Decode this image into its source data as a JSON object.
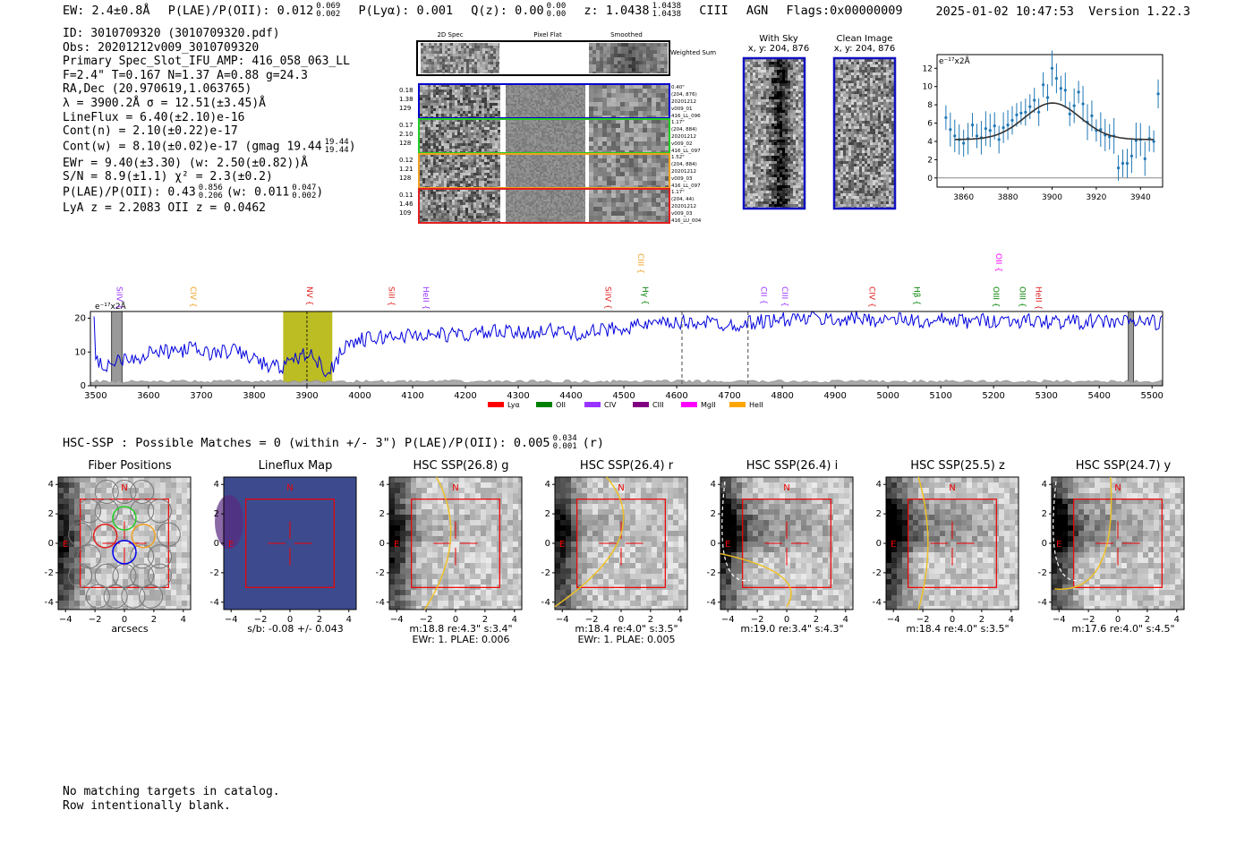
{
  "header": {
    "ew": "EW: 2.4±0.8Å",
    "plae_label": "P(LAE)/P(OII): 0.012",
    "plae_hi": "0.069",
    "plae_lo": "0.002",
    "plya": "P(Lyα): 0.001",
    "qz_label": "Q(z): 0.00",
    "qz_hi": "0.00",
    "qz_lo": "0.00",
    "z_label": "z: 1.0438",
    "z_hi": "1.0438",
    "z_lo": "1.0438",
    "line_id": "CIII",
    "type": "AGN",
    "flags": "Flags:0x00000009",
    "datetime": "2025-01-02 10:47:53",
    "version": "Version 1.22.3"
  },
  "info": {
    "id": "ID: 3010709320 (3010709320.pdf)",
    "obs": "Obs: 20201212v009_3010709320",
    "primary": "Primary Spec_Slot_IFU_AMP: 416_058_063_LL",
    "fit": "F=2.4\"  T=0.167  N=1.37  A=0.88  g=24.3",
    "radec": "RA,Dec (20.970619,1.063765)",
    "lambda": "λ = 3900.2Å   σ = 12.51(±3.45)Å",
    "lineflux": "LineFlux = 6.40(±2.10)e-16",
    "contn": "Cont(n) = 2.10(±0.22)e-17",
    "contw": "Cont(w) = 8.10(±0.02)e-17 (gmag 19.44",
    "contw_hi": "19.44",
    "contw_lo": "19.44",
    "ewr": "EWr = 9.40(±3.30) (w: 2.50(±0.82))Å",
    "sn": "S/N = 8.9(±1.1)  χ² = 2.3(±0.2)",
    "plae": "P(LAE)/P(OII): 0.43",
    "plae_hi": "0.856",
    "plae_lo": "0.206",
    "plae_w": "(w: 0.011",
    "plae_w_hi": "0.047",
    "plae_w_lo": "0.002",
    "lyaz": "LyA z = 2.2083   OII z = 0.0462"
  },
  "spec2d": {
    "headers": [
      "2D Spec",
      "Pixel Flat",
      "Smoothed"
    ],
    "weighted_label": "Weighted Sum",
    "rows": [
      {
        "left": [
          "0.18",
          "1.38",
          "129"
        ],
        "right": [
          "0.40\"",
          "(204, 876)",
          "20201212",
          "v009_01",
          "416_LL_096"
        ],
        "color": "#0000cc"
      },
      {
        "left": [
          "0.17",
          "2.10",
          "128"
        ],
        "right": [
          "1.17\"",
          "(204, 884)",
          "20201212",
          "v009_02",
          "416_LL_097"
        ],
        "color": "#22cc22"
      },
      {
        "left": [
          "0.12",
          "1.21",
          "128"
        ],
        "right": [
          "1.52\"",
          "(204, 884)",
          "20201212",
          "v009_03",
          "416_LL_097"
        ],
        "color": "#f0a020"
      },
      {
        "left": [
          "0.11",
          "1.46",
          "109"
        ],
        "right": [
          "1.17\"",
          "(204, 44)",
          "20201212",
          "v009_03",
          "416_LU_004"
        ],
        "color": "#e02020"
      }
    ]
  },
  "cutouts_top": {
    "with_sky": "With Sky",
    "with_sky_xy": "x, y: 204, 876",
    "clean": "Clean Image",
    "clean_xy": "x, y: 204, 876"
  },
  "line_fit": {
    "unit": "e⁻¹⁷x2Å",
    "chart_data": {
      "type": "scatter",
      "xlim": [
        3848,
        3950
      ],
      "ylim": [
        -1,
        13.5
      ],
      "xticks": [
        3860,
        3880,
        3900,
        3920,
        3940
      ],
      "yticks": [
        0,
        2,
        4,
        6,
        8,
        10,
        12
      ],
      "points": [
        [
          3852,
          6.6
        ],
        [
          3854,
          5.3
        ],
        [
          3856,
          4.6
        ],
        [
          3858,
          4.2
        ],
        [
          3860,
          3.8
        ],
        [
          3862,
          4.3
        ],
        [
          3864,
          5.8
        ],
        [
          3866,
          4.6
        ],
        [
          3868,
          4.4
        ],
        [
          3870,
          5.4
        ],
        [
          3872,
          5.2
        ],
        [
          3874,
          5.7
        ],
        [
          3876,
          4.2
        ],
        [
          3878,
          5.5
        ],
        [
          3880,
          5.8
        ],
        [
          3882,
          6.3
        ],
        [
          3884,
          6.9
        ],
        [
          3886,
          7.1
        ],
        [
          3888,
          7.2
        ],
        [
          3890,
          7.8
        ],
        [
          3892,
          8.5
        ],
        [
          3894,
          7.2
        ],
        [
          3896,
          10.2
        ],
        [
          3898,
          8.8
        ],
        [
          3900,
          12.0
        ],
        [
          3902,
          10.9
        ],
        [
          3904,
          9.8
        ],
        [
          3906,
          9.6
        ],
        [
          3908,
          7.0
        ],
        [
          3910,
          7.9
        ],
        [
          3912,
          9.4
        ],
        [
          3914,
          8.1
        ],
        [
          3916,
          6.1
        ],
        [
          3918,
          6.8
        ],
        [
          3920,
          5.2
        ],
        [
          3922,
          5.3
        ],
        [
          3924,
          4.7
        ],
        [
          3926,
          4.5
        ],
        [
          3928,
          4.6
        ],
        [
          3930,
          1.1
        ],
        [
          3932,
          1.6
        ],
        [
          3934,
          1.6
        ],
        [
          3936,
          2.4
        ],
        [
          3938,
          4.1
        ],
        [
          3940,
          4.2
        ],
        [
          3942,
          2.1
        ],
        [
          3944,
          4.3
        ],
        [
          3946,
          4.0
        ],
        [
          3948,
          9.2
        ]
      ],
      "fit": {
        "center": 3900.2,
        "sigma": 12.51,
        "amp": 4.0,
        "base": 4.2
      }
    }
  },
  "spectrum": {
    "unit": "e⁻¹⁷x2Å",
    "chart_data": {
      "type": "line",
      "xlim": [
        3490,
        5520
      ],
      "ylim": [
        0,
        22
      ],
      "xticks": [
        3500,
        3600,
        3700,
        3800,
        3900,
        4000,
        4100,
        4200,
        4300,
        4400,
        4500,
        4600,
        4700,
        4800,
        4900,
        5000,
        5100,
        5200,
        5300,
        5400,
        5500
      ],
      "yticks": [
        0,
        10,
        20
      ],
      "highlight": [
        3855,
        3948
      ],
      "line_marker": 3900,
      "dashed": [
        4610,
        4735
      ],
      "masked": [
        [
          3530,
          3550
        ],
        [
          5455,
          5465
        ]
      ],
      "anchors": [
        [
          3500,
          7
        ],
        [
          3520,
          6
        ],
        [
          3540,
          7.5
        ],
        [
          3560,
          9
        ],
        [
          3580,
          8
        ],
        [
          3600,
          10
        ],
        [
          3640,
          10
        ],
        [
          3680,
          11
        ],
        [
          3720,
          9.5
        ],
        [
          3760,
          10.5
        ],
        [
          3800,
          8
        ],
        [
          3830,
          5.5
        ],
        [
          3860,
          6
        ],
        [
          3880,
          8
        ],
        [
          3900,
          10
        ],
        [
          3920,
          7
        ],
        [
          3940,
          4
        ],
        [
          3955,
          7
        ],
        [
          3970,
          12
        ],
        [
          4000,
          13.5
        ],
        [
          4050,
          14.5
        ],
        [
          4100,
          15
        ],
        [
          4150,
          15.2
        ],
        [
          4200,
          15
        ],
        [
          4250,
          16
        ],
        [
          4300,
          15.5
        ],
        [
          4350,
          16.5
        ],
        [
          4400,
          15.5
        ],
        [
          4450,
          16
        ],
        [
          4500,
          17.5
        ],
        [
          4550,
          18
        ],
        [
          4600,
          18.5
        ],
        [
          4650,
          19
        ],
        [
          4700,
          18
        ],
        [
          4750,
          19
        ],
        [
          4800,
          19.5
        ],
        [
          4850,
          20
        ],
        [
          4900,
          19.5
        ],
        [
          4950,
          20
        ],
        [
          5000,
          19.5
        ],
        [
          5050,
          19.5
        ],
        [
          5080,
          18
        ],
        [
          5100,
          19.5
        ],
        [
          5150,
          19
        ],
        [
          5200,
          19.5
        ],
        [
          5300,
          19
        ],
        [
          5400,
          19
        ],
        [
          5500,
          19
        ],
        [
          5520,
          18.5
        ]
      ]
    },
    "emission_lines": [
      {
        "name": "SiIV",
        "x": 3535,
        "color": "#9933ff",
        "level": 1
      },
      {
        "name": "CIV",
        "x": 3675,
        "color": "#f0a020",
        "level": 1
      },
      {
        "name": "NV",
        "x": 3895,
        "color": "#e02020",
        "level": 1
      },
      {
        "name": "SiII",
        "x": 4050,
        "color": "#e02020",
        "level": 1
      },
      {
        "name": "HeII",
        "x": 4115,
        "color": "#9933ff",
        "level": 1
      },
      {
        "name": "SiIV",
        "x": 4460,
        "color": "#e02020",
        "level": 1
      },
      {
        "name": "CIII",
        "x": 4522,
        "color": "#f0a020",
        "level": 2
      },
      {
        "name": "Hγ",
        "x": 4530,
        "color": "#008000",
        "level": 1
      },
      {
        "name": "CII",
        "x": 4755,
        "color": "#9933ff",
        "level": 1
      },
      {
        "name": "CIII",
        "x": 4795,
        "color": "#9933ff",
        "level": 1
      },
      {
        "name": "CIV",
        "x": 4960,
        "color": "#e02020",
        "level": 1
      },
      {
        "name": "Hβ",
        "x": 5045,
        "color": "#008000",
        "level": 1
      },
      {
        "name": "OIII",
        "x": 5195,
        "color": "#008000",
        "level": 1
      },
      {
        "name": "OII",
        "x": 5200,
        "color": "#ff00ff",
        "level": 2
      },
      {
        "name": "OIII",
        "x": 5245,
        "color": "#008000",
        "level": 1
      },
      {
        "name": "HeII",
        "x": 5275,
        "color": "#e02020",
        "level": 1
      }
    ],
    "legend": [
      {
        "name": "Lyα",
        "color": "#ff0000"
      },
      {
        "name": "OII",
        "color": "#008000"
      },
      {
        "name": "CIV",
        "color": "#9933ff"
      },
      {
        "name": "CIII",
        "color": "#800080"
      },
      {
        "name": "MgII",
        "color": "#ff00ff"
      },
      {
        "name": "HeII",
        "color": "#ffa500"
      }
    ]
  },
  "hsc": {
    "title": "HSC-SSP : Possible Matches = 0 (within +/- 3\")  P(LAE)/P(OII): 0.005",
    "title_hi": "0.034",
    "title_lo": "0.001",
    "title_band": "(r)",
    "axis_ticks_x": [
      "−4",
      "−2",
      "0",
      "2",
      "4"
    ],
    "axis_ticks_y": [
      "4",
      "2",
      "0",
      "−2",
      "−4"
    ],
    "north": "N",
    "east": "E",
    "panels": [
      {
        "title": "Fiber Positions",
        "cap1": "arcsecs",
        "cap2": ""
      },
      {
        "title": "Lineflux Map",
        "cap1": "s/b: -0.08 +/- 0.043",
        "cap2": ""
      },
      {
        "title": "HSC SSP(26.8) g",
        "cap1": "m:18.8  re:4.3\"   s:3.4\"",
        "cap2": "EWr: 1. PLAE: 0.006"
      },
      {
        "title": "HSC SSP(26.4) r",
        "cap1": "m:18.4  re:4.0\"  s:3.5\"",
        "cap2": "EWr: 1. PLAE: 0.005"
      },
      {
        "title": "HSC SSP(26.4) i",
        "cap1": "m:19.0  re:3.4\"  s:4.3\"",
        "cap2": ""
      },
      {
        "title": "HSC SSP(25.5) z",
        "cap1": "m:18.4  re:4.0\"  s:3.5\"",
        "cap2": ""
      },
      {
        "title": "HSC SSP(24.7) y",
        "cap1": "m:17.6  re:4.0\"  s:4.5\"",
        "cap2": ""
      }
    ]
  },
  "footer": {
    "line1": "No matching targets in catalog.",
    "line2": "Row intentionally blank."
  }
}
